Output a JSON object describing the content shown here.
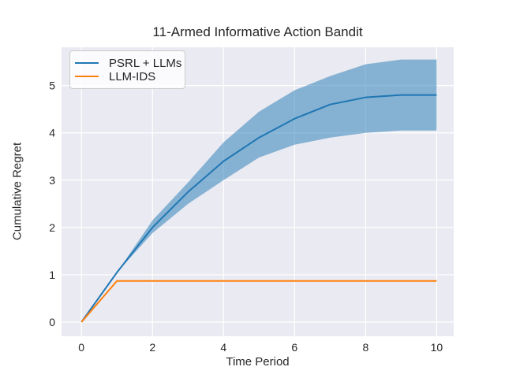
{
  "chart_data": {
    "type": "line",
    "title": "11-Armed Informative Action Bandit",
    "xlabel": "Time Period",
    "ylabel": "Cumulative Regret",
    "x": [
      0,
      1,
      2,
      3,
      4,
      5,
      6,
      7,
      8,
      9,
      10
    ],
    "series": [
      {
        "name": "PSRL + LLMs",
        "color": "#1f77b4",
        "values": [
          0,
          1.05,
          2.0,
          2.75,
          3.4,
          3.9,
          4.3,
          4.6,
          4.75,
          4.8,
          4.8
        ],
        "band_lo": [
          0,
          1.05,
          1.88,
          2.5,
          3.0,
          3.48,
          3.75,
          3.9,
          4.0,
          4.05,
          4.05
        ],
        "band_hi": [
          0,
          1.05,
          2.15,
          2.95,
          3.8,
          4.45,
          4.9,
          5.2,
          5.45,
          5.55,
          5.55
        ],
        "band_opacity": 0.5
      },
      {
        "name": "LLM-IDS",
        "color": "#ff7f0e",
        "values": [
          0,
          0.87,
          0.87,
          0.87,
          0.87,
          0.87,
          0.87,
          0.87,
          0.87,
          0.87,
          0.87
        ]
      }
    ],
    "xticks": [
      0,
      2,
      4,
      6,
      8,
      10
    ],
    "yticks": [
      0,
      1,
      2,
      3,
      4,
      5
    ],
    "xlim": [
      -0.56,
      10.48
    ],
    "ylim": [
      -0.3,
      5.81
    ],
    "grid": true,
    "legend_position": "upper left",
    "plot_bg": "#eaeaf2",
    "grid_color": "#ffffff",
    "text_color": "#262626",
    "fig_bg": "#ffffff",
    "tick_fontsize_px": 14,
    "line_width": 2
  },
  "legend": {
    "items": [
      {
        "label": "PSRL + LLMs"
      },
      {
        "label": "LLM-IDS"
      }
    ]
  }
}
